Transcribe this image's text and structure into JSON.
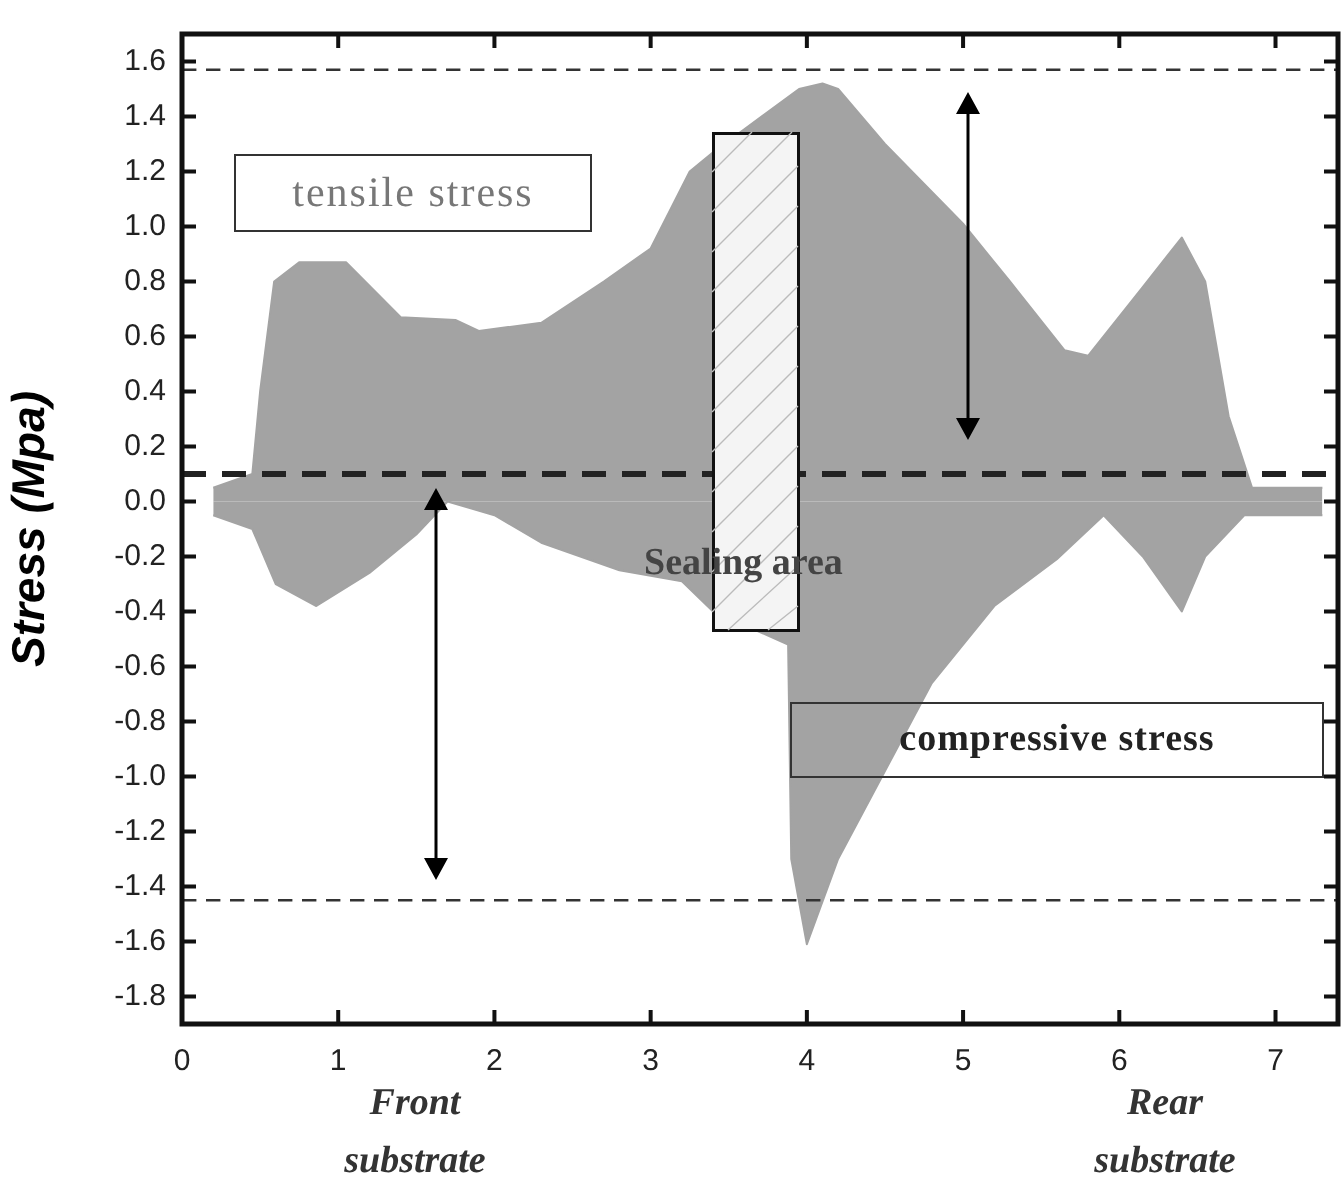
{
  "chart_data": {
    "type": "area",
    "ylabel": "Stress (Mpa)",
    "series": [
      {
        "color": "#a3a3a3",
        "x": [
          0.2,
          0.45,
          0.5,
          0.59,
          0.75,
          1.05,
          1.4,
          1.75,
          1.9,
          2.3,
          2.7,
          3.0,
          3.25,
          3.4,
          3.9,
          3.95,
          4.1,
          4.2,
          4.5,
          5.0,
          5.3,
          5.65,
          5.8,
          6.15,
          6.4,
          6.55,
          6.7,
          6.85,
          7.3
        ],
        "values": [
          0.05,
          0.1,
          0.4,
          0.8,
          0.87,
          0.87,
          0.67,
          0.66,
          0.62,
          0.65,
          0.8,
          0.92,
          1.2,
          1.27,
          null,
          1.5,
          1.52,
          1.5,
          1.3,
          1.01,
          0.8,
          0.55,
          0.53,
          0.78,
          0.96,
          0.8,
          0.31,
          0.05,
          0.05
        ]
      },
      {
        "color": "#a3a3a3",
        "x": [
          0.2,
          0.45,
          0.6,
          0.86,
          1.2,
          1.5,
          1.7,
          2.0,
          2.3,
          2.8,
          3.2,
          3.4,
          3.88,
          3.9,
          4.0,
          4.2,
          4.45,
          4.8,
          5.2,
          5.6,
          5.9,
          6.15,
          6.4,
          6.55,
          6.8,
          7.3
        ],
        "values": [
          -0.05,
          -0.1,
          -0.3,
          -0.38,
          -0.26,
          -0.12,
          0,
          -0.05,
          -0.15,
          -0.25,
          -0.29,
          -0.4,
          -0.52,
          -1.3,
          -1.61,
          -1.3,
          null,
          -0.66,
          -0.38,
          -0.21,
          -0.05,
          -0.2,
          -0.4,
          -0.2,
          -0.05,
          -0.05
        ]
      }
    ],
    "xlim": [
      0,
      7.4
    ],
    "xticks": [
      0,
      1,
      2,
      3,
      4,
      5,
      6,
      7
    ],
    "ylim": [
      -1.9,
      1.7
    ],
    "yticks": [
      -1.8,
      -1.6,
      -1.4,
      -1.2,
      {
        "value": -1,
        "label": "-1.0"
      },
      -0.8,
      -0.6,
      -0.4,
      -0.2,
      {
        "value": 0,
        "label": "0.0"
      },
      0.2,
      0.4,
      0.6,
      0.8,
      {
        "value": 1,
        "label": "1.0"
      },
      1.2,
      1.4,
      1.6
    ],
    "ref_lines": [
      {
        "axis": "y",
        "value": 0.1,
        "label": null,
        "color": "#222222",
        "line_style": "dashed"
      },
      {
        "axis": "y",
        "value": 1.57,
        "label": null,
        "color": "#333333",
        "line_style": "dashed"
      },
      {
        "axis": "y",
        "value": -1.45,
        "label": null,
        "color": "#333333",
        "line_style": "dashed"
      }
    ],
    "annotations": [
      "tensile stress",
      "compressive stress",
      "Sealing area",
      "Front substrate",
      "Rear substrate"
    ],
    "grid": false,
    "legend": false
  }
}
